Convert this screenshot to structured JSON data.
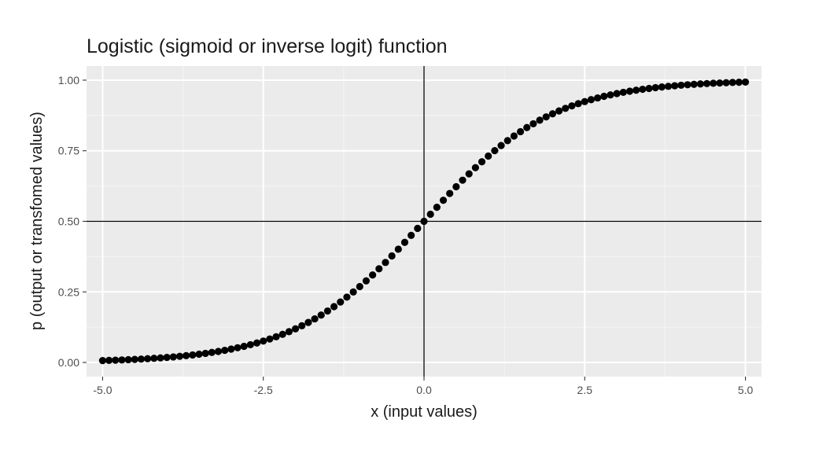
{
  "chart_data": {
    "type": "scatter",
    "title": "Logistic (sigmoid or inverse logit) function",
    "xlabel": "x (input values)",
    "ylabel": "p (output or transfomed values)",
    "xlim": [
      -5.25,
      5.25
    ],
    "ylim": [
      -0.05,
      1.05
    ],
    "x_ticks": [
      {
        "value": -5.0,
        "label": "-5.0"
      },
      {
        "value": -2.5,
        "label": "-2.5"
      },
      {
        "value": 0.0,
        "label": "0.0"
      },
      {
        "value": 2.5,
        "label": "2.5"
      },
      {
        "value": 5.0,
        "label": "5.0"
      }
    ],
    "y_ticks": [
      {
        "value": 0.0,
        "label": "0.00"
      },
      {
        "value": 0.25,
        "label": "0.25"
      },
      {
        "value": 0.5,
        "label": "0.50"
      },
      {
        "value": 0.75,
        "label": "0.75"
      },
      {
        "value": 1.0,
        "label": "1.00"
      }
    ],
    "grid": true,
    "reference_lines": {
      "vertical_x": 0,
      "horizontal_y": 0.5
    },
    "colors": {
      "panel": "#ebebeb",
      "grid_major": "#ffffff",
      "points": "#000000",
      "reference": "#000000"
    },
    "series": [
      {
        "x": [
          -5.0,
          -4.9,
          -4.8,
          -4.7,
          -4.6,
          -4.5,
          -4.4,
          -4.3,
          -4.2,
          -4.1,
          -4.0,
          -3.9,
          -3.8,
          -3.7,
          -3.6,
          -3.5,
          -3.4,
          -3.3,
          -3.2,
          -3.1,
          -3.0,
          -2.9,
          -2.8,
          -2.7,
          -2.6,
          -2.5,
          -2.4,
          -2.3,
          -2.2,
          -2.1,
          -2.0,
          -1.9,
          -1.8,
          -1.7,
          -1.6,
          -1.5,
          -1.4,
          -1.3,
          -1.2,
          -1.1,
          -1.0,
          -0.9,
          -0.8,
          -0.7,
          -0.6,
          -0.5,
          -0.4,
          -0.3,
          -0.2,
          -0.1,
          0.0,
          0.1,
          0.2,
          0.3,
          0.4,
          0.5,
          0.6,
          0.7,
          0.8,
          0.9,
          1.0,
          1.1,
          1.2,
          1.3,
          1.4,
          1.5,
          1.6,
          1.7,
          1.8,
          1.9,
          2.0,
          2.1,
          2.2,
          2.3,
          2.4,
          2.5,
          2.6,
          2.7,
          2.8,
          2.9,
          3.0,
          3.1,
          3.2,
          3.3,
          3.4,
          3.5,
          3.6,
          3.7,
          3.8,
          3.9,
          4.0,
          4.1,
          4.2,
          4.3,
          4.4,
          4.5,
          4.6,
          4.7,
          4.8,
          4.9,
          5.0
        ],
        "y": [
          0.0067,
          0.0074,
          0.0082,
          0.009,
          0.01,
          0.011,
          0.0121,
          0.0134,
          0.0148,
          0.0163,
          0.018,
          0.0198,
          0.0219,
          0.0241,
          0.0266,
          0.0293,
          0.0323,
          0.0356,
          0.0392,
          0.0431,
          0.0474,
          0.0522,
          0.0573,
          0.063,
          0.0691,
          0.0759,
          0.0832,
          0.0911,
          0.0998,
          0.1091,
          0.1192,
          0.1301,
          0.1419,
          0.1545,
          0.168,
          0.1824,
          0.1978,
          0.2142,
          0.2315,
          0.2497,
          0.2689,
          0.2891,
          0.31,
          0.3318,
          0.3543,
          0.3775,
          0.4013,
          0.4256,
          0.4502,
          0.475,
          0.5,
          0.525,
          0.5498,
          0.5744,
          0.5987,
          0.6225,
          0.6457,
          0.6682,
          0.69,
          0.7109,
          0.7311,
          0.7503,
          0.7685,
          0.7858,
          0.8022,
          0.8176,
          0.832,
          0.8455,
          0.8581,
          0.8699,
          0.8808,
          0.8909,
          0.9002,
          0.9089,
          0.9168,
          0.9241,
          0.9309,
          0.937,
          0.9427,
          0.9478,
          0.9526,
          0.9569,
          0.9608,
          0.9644,
          0.9677,
          0.9707,
          0.9734,
          0.9759,
          0.9781,
          0.9802,
          0.982,
          0.9837,
          0.9852,
          0.9866,
          0.9879,
          0.989,
          0.99,
          0.991,
          0.9918,
          0.9926,
          0.9933
        ]
      }
    ]
  }
}
